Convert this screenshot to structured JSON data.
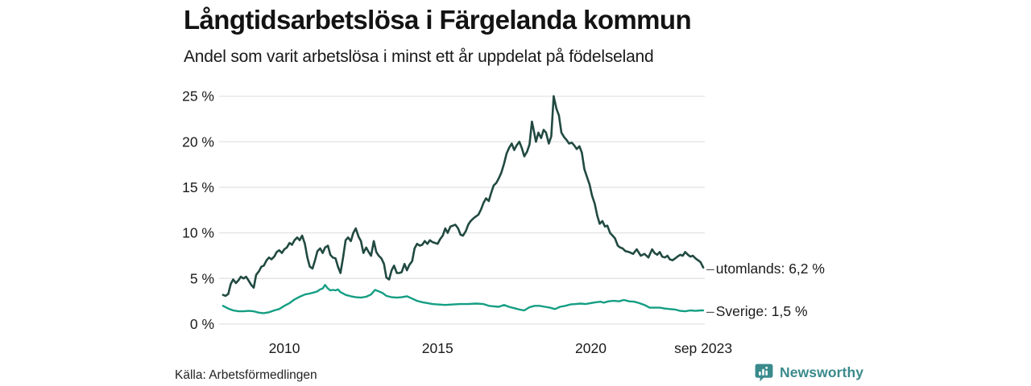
{
  "header": {
    "title": "Långtidsarbetslösa i Färgelanda kommun",
    "subtitle": "Andel som varit arbetslösa i minst ett år uppdelat på födelseland"
  },
  "legend": {
    "dash": "–",
    "items": [
      {
        "series": "utomlands",
        "label": "utomlands: 6,2 %"
      },
      {
        "series": "Sverige",
        "label": "Sverige: 1,5 %"
      }
    ]
  },
  "footer": {
    "source": "Källa: Arbetsförmedlingen",
    "brand": "Newsworthy"
  },
  "colors": {
    "utomlands_line": "#214a41",
    "sverige_line": "#149e83",
    "gridline": "#e3e3e3",
    "tick_text": "#1a1a1a",
    "brand_teal": "#3a8a8c",
    "title_text": "#131313",
    "background": "#ffffff"
  },
  "chart_data": {
    "type": "line",
    "title": "Långtidsarbetslösa i Färgelanda kommun",
    "subtitle": "Andel som varit arbetslösa i minst ett år uppdelat på födelseland",
    "xlabel": "",
    "ylabel": "",
    "grid": "horizontal",
    "legend_position": "right-end-labels",
    "xlim": [
      2007.87,
      2023.72
    ],
    "ylim": [
      0,
      25
    ],
    "y_ticks": [
      {
        "v": 0,
        "label": "0 %"
      },
      {
        "v": 5,
        "label": "5 %"
      },
      {
        "v": 10,
        "label": "10 %"
      },
      {
        "v": 15,
        "label": "15 %"
      },
      {
        "v": 20,
        "label": "20 %"
      },
      {
        "v": 25,
        "label": "25 %"
      }
    ],
    "x_ticks": [
      {
        "t": 2010,
        "label": "2010"
      },
      {
        "t": 2015,
        "label": "2015"
      },
      {
        "t": 2020,
        "label": "2020"
      },
      {
        "t": 2023.67,
        "label": "sep 2023"
      }
    ],
    "series": [
      {
        "name": "utomlands",
        "end_label": "utomlands: 6,2 %",
        "final_value_pct": 6.2,
        "color": "#214a41",
        "points": [
          [
            2008.0,
            3.2
          ],
          [
            2008.08,
            3.1
          ],
          [
            2008.17,
            3.3
          ],
          [
            2008.25,
            4.4
          ],
          [
            2008.33,
            4.9
          ],
          [
            2008.42,
            4.5
          ],
          [
            2008.5,
            4.8
          ],
          [
            2008.58,
            5.2
          ],
          [
            2008.67,
            5.0
          ],
          [
            2008.75,
            5.2
          ],
          [
            2008.83,
            4.8
          ],
          [
            2008.92,
            4.3
          ],
          [
            2009.0,
            4.0
          ],
          [
            2009.08,
            5.4
          ],
          [
            2009.17,
            5.8
          ],
          [
            2009.25,
            6.3
          ],
          [
            2009.33,
            6.4
          ],
          [
            2009.42,
            7.0
          ],
          [
            2009.5,
            7.3
          ],
          [
            2009.58,
            7.1
          ],
          [
            2009.67,
            7.4
          ],
          [
            2009.75,
            7.9
          ],
          [
            2009.83,
            8.1
          ],
          [
            2009.92,
            7.8
          ],
          [
            2010.0,
            8.2
          ],
          [
            2010.08,
            8.4
          ],
          [
            2010.17,
            8.9
          ],
          [
            2010.25,
            8.7
          ],
          [
            2010.33,
            9.2
          ],
          [
            2010.42,
            9.5
          ],
          [
            2010.5,
            9.2
          ],
          [
            2010.58,
            9.7
          ],
          [
            2010.67,
            8.8
          ],
          [
            2010.75,
            7.3
          ],
          [
            2010.83,
            6.3
          ],
          [
            2010.92,
            6.1
          ],
          [
            2011.0,
            7.0
          ],
          [
            2011.08,
            8.0
          ],
          [
            2011.17,
            8.3
          ],
          [
            2011.25,
            7.8
          ],
          [
            2011.33,
            8.4
          ],
          [
            2011.42,
            8.6
          ],
          [
            2011.5,
            7.6
          ],
          [
            2011.58,
            7.3
          ],
          [
            2011.67,
            7.2
          ],
          [
            2011.75,
            6.3
          ],
          [
            2011.83,
            5.6
          ],
          [
            2011.92,
            7.4
          ],
          [
            2012.0,
            9.2
          ],
          [
            2012.08,
            9.5
          ],
          [
            2012.17,
            9.1
          ],
          [
            2012.25,
            10.0
          ],
          [
            2012.33,
            10.5
          ],
          [
            2012.42,
            9.6
          ],
          [
            2012.5,
            9.1
          ],
          [
            2012.58,
            7.8
          ],
          [
            2012.67,
            8.4
          ],
          [
            2012.75,
            7.9
          ],
          [
            2012.83,
            7.5
          ],
          [
            2012.92,
            9.1
          ],
          [
            2013.0,
            7.9
          ],
          [
            2013.08,
            7.5
          ],
          [
            2013.17,
            7.2
          ],
          [
            2013.25,
            6.6
          ],
          [
            2013.33,
            5.1
          ],
          [
            2013.42,
            4.9
          ],
          [
            2013.5,
            5.9
          ],
          [
            2013.58,
            6.4
          ],
          [
            2013.67,
            5.6
          ],
          [
            2013.75,
            5.6
          ],
          [
            2013.83,
            5.7
          ],
          [
            2013.92,
            6.6
          ],
          [
            2014.0,
            5.9
          ],
          [
            2014.08,
            6.5
          ],
          [
            2014.17,
            6.9
          ],
          [
            2014.25,
            8.3
          ],
          [
            2014.33,
            8.8
          ],
          [
            2014.42,
            8.6
          ],
          [
            2014.5,
            8.7
          ],
          [
            2014.58,
            9.1
          ],
          [
            2014.67,
            8.8
          ],
          [
            2014.75,
            9.2
          ],
          [
            2014.83,
            9.0
          ],
          [
            2014.92,
            8.9
          ],
          [
            2015.0,
            8.8
          ],
          [
            2015.08,
            9.3
          ],
          [
            2015.17,
            9.7
          ],
          [
            2015.25,
            10.5
          ],
          [
            2015.33,
            10.0
          ],
          [
            2015.42,
            10.7
          ],
          [
            2015.5,
            10.8
          ],
          [
            2015.58,
            10.9
          ],
          [
            2015.67,
            10.5
          ],
          [
            2015.75,
            9.8
          ],
          [
            2015.83,
            9.7
          ],
          [
            2015.92,
            10.2
          ],
          [
            2016.0,
            10.9
          ],
          [
            2016.08,
            11.3
          ],
          [
            2016.17,
            11.6
          ],
          [
            2016.25,
            11.8
          ],
          [
            2016.33,
            12.0
          ],
          [
            2016.42,
            12.6
          ],
          [
            2016.5,
            13.3
          ],
          [
            2016.58,
            13.8
          ],
          [
            2016.67,
            13.5
          ],
          [
            2016.75,
            14.4
          ],
          [
            2016.83,
            15.2
          ],
          [
            2016.92,
            15.5
          ],
          [
            2017.0,
            16.0
          ],
          [
            2017.08,
            16.6
          ],
          [
            2017.17,
            17.6
          ],
          [
            2017.25,
            18.7
          ],
          [
            2017.33,
            19.3
          ],
          [
            2017.42,
            19.8
          ],
          [
            2017.5,
            19.1
          ],
          [
            2017.58,
            19.6
          ],
          [
            2017.67,
            20.0
          ],
          [
            2017.75,
            19.3
          ],
          [
            2017.83,
            18.4
          ],
          [
            2017.92,
            18.9
          ],
          [
            2018.0,
            19.7
          ],
          [
            2018.08,
            22.2
          ],
          [
            2018.13,
            21.4
          ],
          [
            2018.21,
            20.0
          ],
          [
            2018.29,
            21.0
          ],
          [
            2018.38,
            20.4
          ],
          [
            2018.46,
            21.3
          ],
          [
            2018.54,
            21.0
          ],
          [
            2018.63,
            19.8
          ],
          [
            2018.71,
            20.6
          ],
          [
            2018.79,
            25.0
          ],
          [
            2018.88,
            23.6
          ],
          [
            2018.96,
            22.9
          ],
          [
            2019.04,
            21.0
          ],
          [
            2019.13,
            20.5
          ],
          [
            2019.21,
            20.2
          ],
          [
            2019.29,
            19.8
          ],
          [
            2019.38,
            19.9
          ],
          [
            2019.46,
            19.6
          ],
          [
            2019.54,
            19.2
          ],
          [
            2019.63,
            19.5
          ],
          [
            2019.71,
            18.8
          ],
          [
            2019.79,
            17.0
          ],
          [
            2019.88,
            16.1
          ],
          [
            2019.96,
            15.3
          ],
          [
            2020.04,
            14.1
          ],
          [
            2020.13,
            13.2
          ],
          [
            2020.21,
            11.9
          ],
          [
            2020.29,
            11.0
          ],
          [
            2020.38,
            11.3
          ],
          [
            2020.46,
            10.7
          ],
          [
            2020.54,
            10.8
          ],
          [
            2020.63,
            10.0
          ],
          [
            2020.71,
            9.7
          ],
          [
            2020.79,
            9.4
          ],
          [
            2020.88,
            8.6
          ],
          [
            2020.96,
            8.4
          ],
          [
            2021.04,
            8.3
          ],
          [
            2021.13,
            8.0
          ],
          [
            2021.25,
            7.9
          ],
          [
            2021.38,
            7.7
          ],
          [
            2021.5,
            8.2
          ],
          [
            2021.63,
            7.5
          ],
          [
            2021.75,
            7.7
          ],
          [
            2021.88,
            7.3
          ],
          [
            2022.0,
            8.2
          ],
          [
            2022.08,
            7.8
          ],
          [
            2022.17,
            7.6
          ],
          [
            2022.25,
            7.9
          ],
          [
            2022.33,
            7.4
          ],
          [
            2022.42,
            7.3
          ],
          [
            2022.5,
            7.5
          ],
          [
            2022.58,
            7.1
          ],
          [
            2022.67,
            7.0
          ],
          [
            2022.75,
            7.2
          ],
          [
            2022.83,
            7.4
          ],
          [
            2022.92,
            7.6
          ],
          [
            2023.0,
            7.5
          ],
          [
            2023.08,
            7.9
          ],
          [
            2023.17,
            7.6
          ],
          [
            2023.25,
            7.4
          ],
          [
            2023.33,
            7.5
          ],
          [
            2023.42,
            7.2
          ],
          [
            2023.5,
            7.0
          ],
          [
            2023.58,
            6.8
          ],
          [
            2023.67,
            6.2
          ]
        ]
      },
      {
        "name": "Sverige",
        "end_label": "Sverige: 1,5 %",
        "final_value_pct": 1.5,
        "color": "#149e83",
        "points": [
          [
            2008.0,
            2.0
          ],
          [
            2008.17,
            1.7
          ],
          [
            2008.33,
            1.5
          ],
          [
            2008.5,
            1.4
          ],
          [
            2008.67,
            1.4
          ],
          [
            2008.83,
            1.45
          ],
          [
            2009.0,
            1.4
          ],
          [
            2009.17,
            1.25
          ],
          [
            2009.33,
            1.2
          ],
          [
            2009.5,
            1.3
          ],
          [
            2009.67,
            1.5
          ],
          [
            2009.83,
            1.65
          ],
          [
            2010.0,
            2.0
          ],
          [
            2010.17,
            2.3
          ],
          [
            2010.33,
            2.7
          ],
          [
            2010.5,
            3.0
          ],
          [
            2010.67,
            3.25
          ],
          [
            2010.83,
            3.35
          ],
          [
            2011.0,
            3.5
          ],
          [
            2011.08,
            3.6
          ],
          [
            2011.17,
            3.8
          ],
          [
            2011.25,
            3.9
          ],
          [
            2011.33,
            4.3
          ],
          [
            2011.42,
            3.9
          ],
          [
            2011.5,
            3.7
          ],
          [
            2011.58,
            3.75
          ],
          [
            2011.67,
            3.7
          ],
          [
            2011.75,
            3.8
          ],
          [
            2011.83,
            3.5
          ],
          [
            2011.92,
            3.35
          ],
          [
            2012.0,
            3.2
          ],
          [
            2012.17,
            3.05
          ],
          [
            2012.33,
            2.95
          ],
          [
            2012.5,
            2.9
          ],
          [
            2012.67,
            3.0
          ],
          [
            2012.83,
            3.25
          ],
          [
            2012.96,
            3.75
          ],
          [
            2013.08,
            3.6
          ],
          [
            2013.21,
            3.4
          ],
          [
            2013.33,
            3.1
          ],
          [
            2013.5,
            2.95
          ],
          [
            2013.67,
            2.9
          ],
          [
            2013.83,
            2.95
          ],
          [
            2014.0,
            3.05
          ],
          [
            2014.17,
            2.8
          ],
          [
            2014.33,
            2.55
          ],
          [
            2014.5,
            2.4
          ],
          [
            2014.67,
            2.3
          ],
          [
            2014.83,
            2.2
          ],
          [
            2015.0,
            2.15
          ],
          [
            2015.25,
            2.1
          ],
          [
            2015.5,
            2.15
          ],
          [
            2015.75,
            2.2
          ],
          [
            2016.0,
            2.2
          ],
          [
            2016.25,
            2.25
          ],
          [
            2016.5,
            2.2
          ],
          [
            2016.67,
            2.0
          ],
          [
            2016.83,
            1.95
          ],
          [
            2017.0,
            1.9
          ],
          [
            2017.17,
            2.1
          ],
          [
            2017.33,
            1.9
          ],
          [
            2017.5,
            1.75
          ],
          [
            2017.67,
            1.6
          ],
          [
            2017.83,
            1.5
          ],
          [
            2018.0,
            1.85
          ],
          [
            2018.17,
            2.0
          ],
          [
            2018.33,
            2.0
          ],
          [
            2018.5,
            1.9
          ],
          [
            2018.67,
            1.8
          ],
          [
            2018.83,
            1.65
          ],
          [
            2019.0,
            1.9
          ],
          [
            2019.17,
            2.0
          ],
          [
            2019.33,
            2.15
          ],
          [
            2019.5,
            2.2
          ],
          [
            2019.67,
            2.25
          ],
          [
            2019.83,
            2.2
          ],
          [
            2020.0,
            2.3
          ],
          [
            2020.17,
            2.4
          ],
          [
            2020.33,
            2.45
          ],
          [
            2020.42,
            2.35
          ],
          [
            2020.58,
            2.5
          ],
          [
            2020.75,
            2.55
          ],
          [
            2020.92,
            2.5
          ],
          [
            2021.08,
            2.65
          ],
          [
            2021.25,
            2.5
          ],
          [
            2021.42,
            2.45
          ],
          [
            2021.58,
            2.3
          ],
          [
            2021.75,
            2.1
          ],
          [
            2021.92,
            1.8
          ],
          [
            2022.08,
            1.8
          ],
          [
            2022.25,
            1.8
          ],
          [
            2022.42,
            1.7
          ],
          [
            2022.58,
            1.65
          ],
          [
            2022.75,
            1.6
          ],
          [
            2022.92,
            1.45
          ],
          [
            2023.08,
            1.4
          ],
          [
            2023.25,
            1.5
          ],
          [
            2023.42,
            1.45
          ],
          [
            2023.58,
            1.5
          ],
          [
            2023.67,
            1.5
          ]
        ]
      }
    ],
    "source": "Källa: Arbetsförmedlingen"
  }
}
